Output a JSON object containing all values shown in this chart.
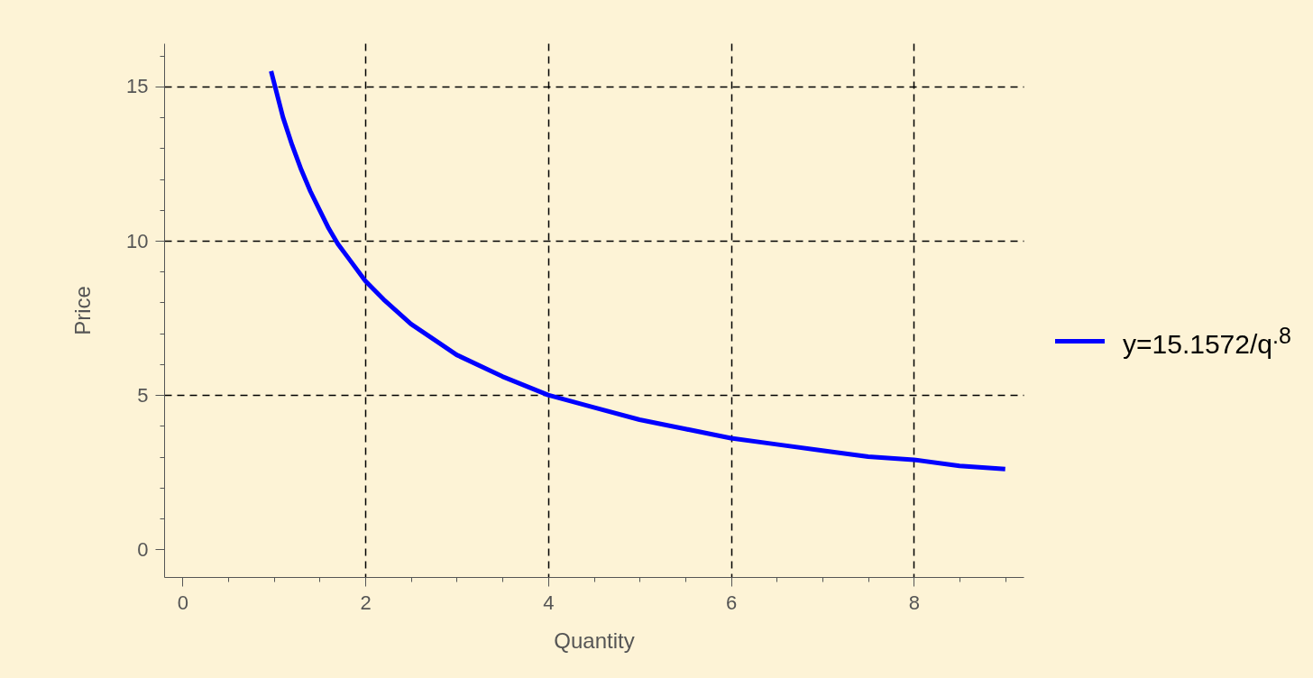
{
  "chart_data": {
    "type": "line",
    "xlabel": "Quantity",
    "ylabel": "Price",
    "xlim": [
      -0.2,
      9.2
    ],
    "ylim": [
      -0.9,
      16.4
    ],
    "xticks": [
      0,
      {
        "value": 0.5,
        "label": null
      },
      {
        "value": 1,
        "label": null
      },
      {
        "value": 1.5,
        "label": null
      },
      2,
      {
        "value": 2.5,
        "label": null
      },
      {
        "value": 3,
        "label": null
      },
      {
        "value": 3.5,
        "label": null
      },
      4,
      {
        "value": 4.5,
        "label": null
      },
      {
        "value": 5,
        "label": null
      },
      {
        "value": 5.5,
        "label": null
      },
      6,
      {
        "value": 6.5,
        "label": null
      },
      {
        "value": 7,
        "label": null
      },
      {
        "value": 7.5,
        "label": null
      },
      8,
      {
        "value": 8.5,
        "label": null
      },
      {
        "value": 9,
        "label": null
      }
    ],
    "yticks": [
      0,
      {
        "value": 1,
        "label": null
      },
      {
        "value": 2,
        "label": null
      },
      {
        "value": 3,
        "label": null
      },
      {
        "value": 4,
        "label": null
      },
      5,
      {
        "value": 6,
        "label": null
      },
      {
        "value": 7,
        "label": null
      },
      {
        "value": 8,
        "label": null
      },
      {
        "value": 9,
        "label": null
      },
      10,
      {
        "value": 11,
        "label": null
      },
      {
        "value": 12,
        "label": null
      },
      {
        "value": 13,
        "label": null
      },
      {
        "value": 14,
        "label": null
      },
      15,
      {
        "value": 16,
        "label": null
      }
    ],
    "grid": true,
    "legend": "right",
    "line_style": "solid",
    "marker": "none",
    "x": [
      0.97,
      1.1,
      1.2,
      1.3,
      1.4,
      1.5,
      1.6,
      1.7,
      1.8,
      2,
      2.2,
      2.5,
      2.8,
      3,
      3.5,
      4,
      4.5,
      5,
      5.5,
      6,
      6.5,
      7,
      7.5,
      8,
      8.5,
      9
    ],
    "series": [
      {
        "name": "y=15.1572/q$^{.8}$",
        "color": "#0000ff",
        "values": [
          15.5,
          14.0,
          13.1,
          12.3,
          11.6,
          11.0,
          10.4,
          9.9,
          9.5,
          8.7,
          8.1,
          7.3,
          6.7,
          6.3,
          5.6,
          5.0,
          4.6,
          4.2,
          3.9,
          3.6,
          3.4,
          3.2,
          3.0,
          2.9,
          2.7,
          2.6
        ]
      }
    ]
  }
}
